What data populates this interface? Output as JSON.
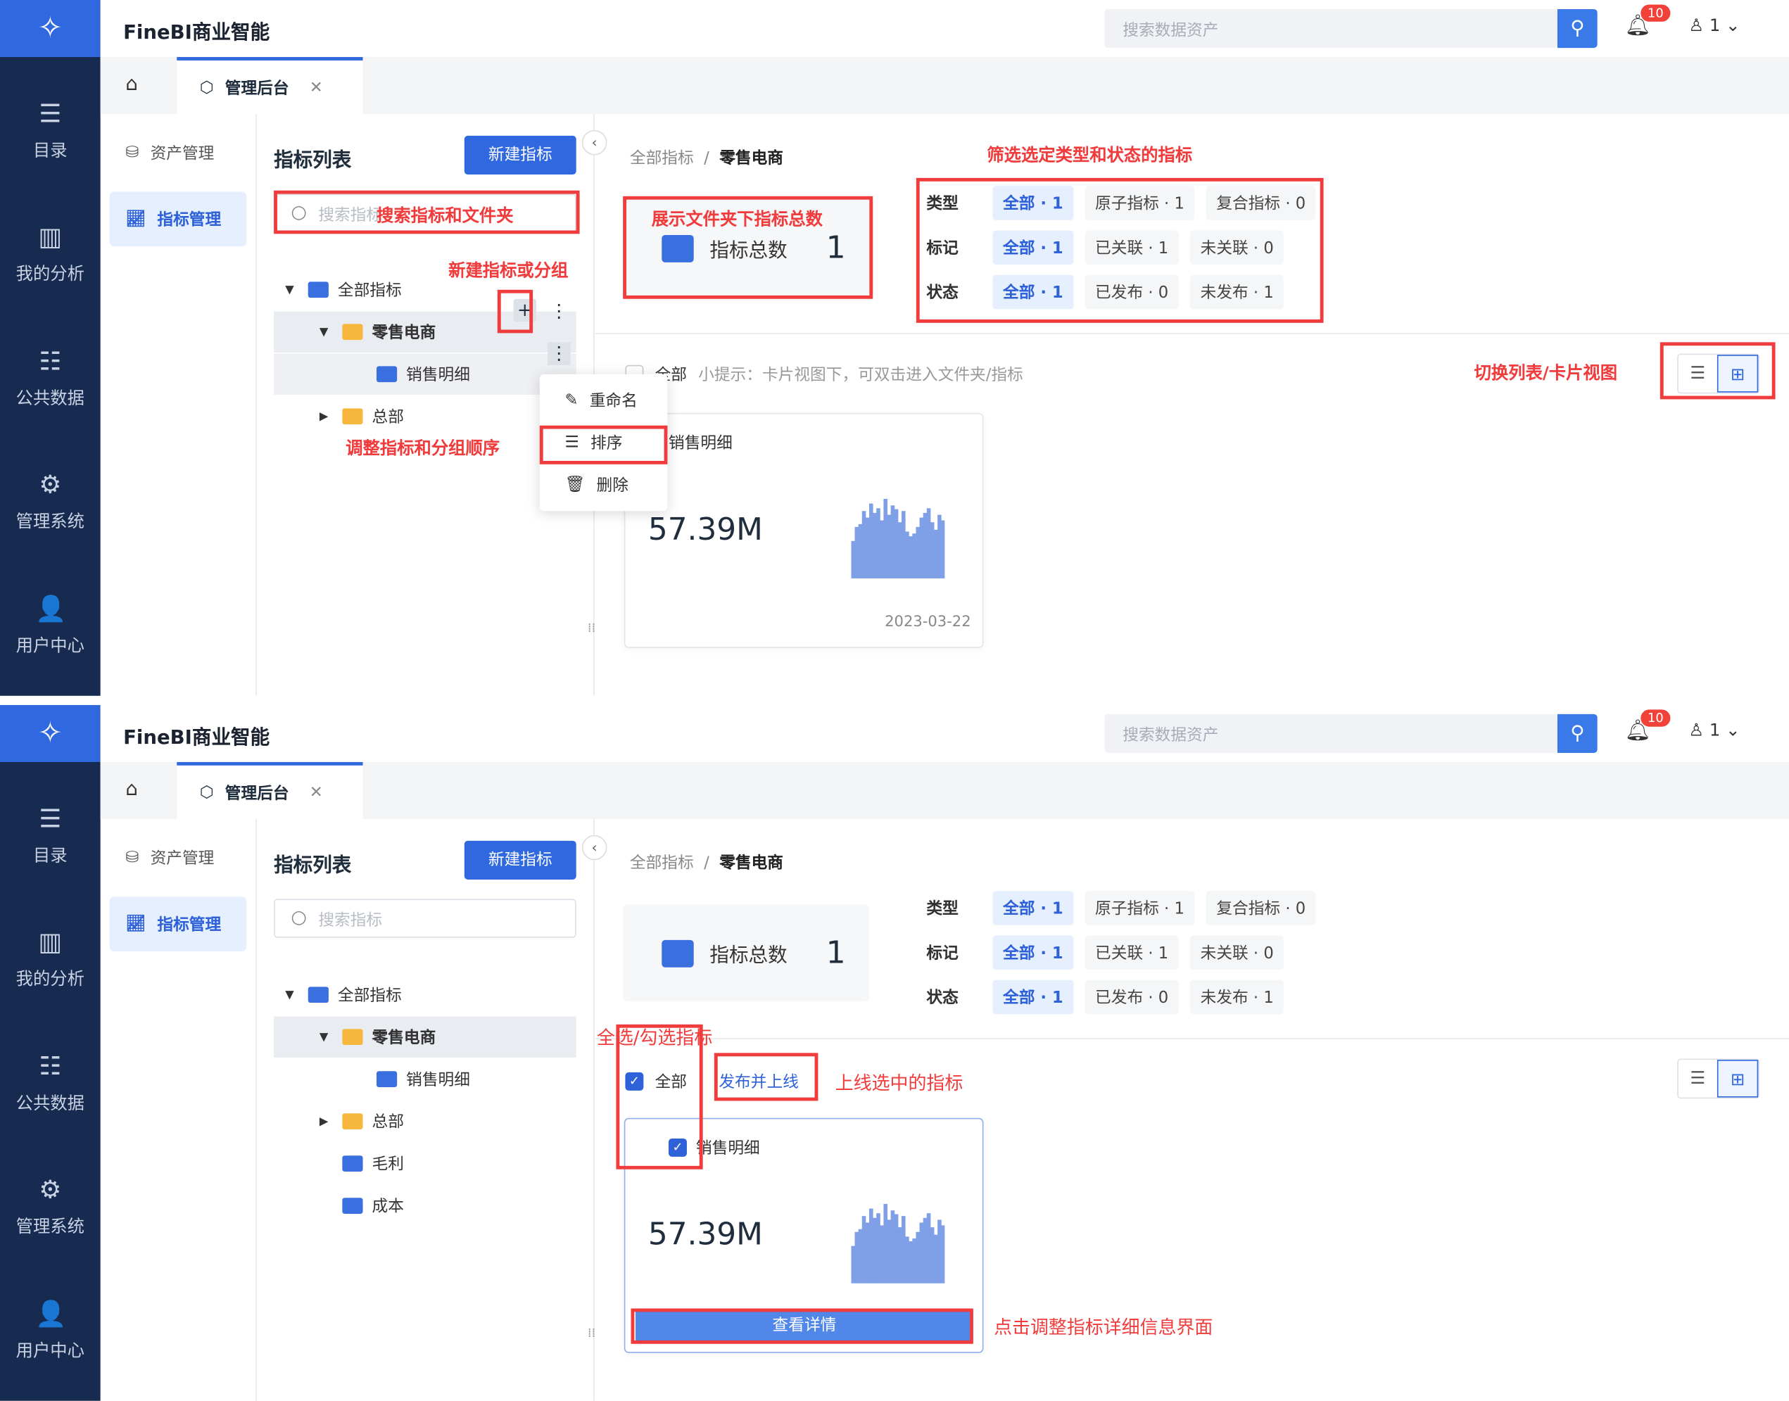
{
  "panels": [
    {
      "logo_icon": "finebi-logo",
      "app_title": "FineBI商业智能",
      "search_placeholder": "搜索数据资产",
      "notification_count": "10",
      "user": "1",
      "nav": [
        "目录",
        "我的分析",
        "公共数据",
        "管理系统",
        "用户中心"
      ],
      "tab": "管理后台",
      "subnav": [
        "资产管理",
        "指标管理"
      ],
      "list_title": "指标列表",
      "new_button": "新建指标",
      "list_search_placeholder": "搜索指标",
      "tree": [
        {
          "label": "全部指标",
          "type": "metric",
          "caret": "▼",
          "indent": 0
        },
        {
          "label": "零售电商",
          "type": "folder",
          "caret": "▼",
          "indent": 1,
          "selected": true,
          "bold": true
        },
        {
          "label": "销售明细",
          "type": "metric",
          "caret": "",
          "indent": 2,
          "hover": true
        },
        {
          "label": "总部",
          "type": "folder",
          "caret": "▶",
          "indent": 1
        }
      ],
      "breadcrumb": {
        "root": "全部指标",
        "current": "零售电商"
      },
      "stat": {
        "label": "指标总数",
        "value": "1"
      },
      "filters": [
        {
          "label": "类型",
          "chips": [
            "全部 · 1",
            "原子指标 · 1",
            "复合指标 · 0"
          ]
        },
        {
          "label": "标记",
          "chips": [
            "全部 · 1",
            "已关联 · 1",
            "未关联 · 0"
          ]
        },
        {
          "label": "状态",
          "chips": [
            "全部 · 1",
            "已发布 · 0",
            "未发布 · 1"
          ]
        }
      ],
      "select_all": {
        "label": "全部",
        "checked": false
      },
      "tip": "小提示：卡片视图下，可双击进入文件夹/指标",
      "publish": "",
      "view_mode": "card",
      "card": {
        "title": "销售明细",
        "value": "57.39M",
        "date": "2023-03-22",
        "checked": null,
        "button": ""
      },
      "context_menu": [
        "重命名",
        "排序",
        "删除"
      ],
      "annotations": [
        "搜索指标和文件夹",
        "展示文件夹下指标总数",
        "筛选选定类型和状态的指标",
        "新建指标或分组",
        "调整指标和分组顺序",
        "切换列表/卡片视图"
      ]
    },
    {
      "logo_icon": "finebi-logo",
      "app_title": "FineBI商业智能",
      "search_placeholder": "搜索数据资产",
      "notification_count": "10",
      "user": "1",
      "nav": [
        "目录",
        "我的分析",
        "公共数据",
        "管理系统",
        "用户中心"
      ],
      "tab": "管理后台",
      "subnav": [
        "资产管理",
        "指标管理"
      ],
      "list_title": "指标列表",
      "new_button": "新建指标",
      "list_search_placeholder": "搜索指标",
      "tree": [
        {
          "label": "全部指标",
          "type": "metric",
          "caret": "▼",
          "indent": 0
        },
        {
          "label": "零售电商",
          "type": "folder",
          "caret": "▼",
          "indent": 1,
          "selected": true,
          "bold": true
        },
        {
          "label": "销售明细",
          "type": "metric",
          "caret": "",
          "indent": 2
        },
        {
          "label": "总部",
          "type": "folder",
          "caret": "▶",
          "indent": 1
        },
        {
          "label": "毛利",
          "type": "metric",
          "caret": "",
          "indent": 1
        },
        {
          "label": "成本",
          "type": "metric",
          "caret": "",
          "indent": 1
        }
      ],
      "breadcrumb": {
        "root": "全部指标",
        "current": "零售电商"
      },
      "stat": {
        "label": "指标总数",
        "value": "1"
      },
      "filters": [
        {
          "label": "类型",
          "chips": [
            "全部 · 1",
            "原子指标 · 1",
            "复合指标 · 0"
          ]
        },
        {
          "label": "标记",
          "chips": [
            "全部 · 1",
            "已关联 · 1",
            "未关联 · 0"
          ]
        },
        {
          "label": "状态",
          "chips": [
            "全部 · 1",
            "已发布 · 0",
            "未发布 · 1"
          ]
        }
      ],
      "select_all": {
        "label": "全部",
        "checked": true
      },
      "tip": "",
      "publish": "发布并上线",
      "view_mode": "card",
      "card": {
        "title": "销售明细",
        "value": "57.39M",
        "date": "",
        "checked": true,
        "button": "查看详情"
      },
      "context_menu": [],
      "annotations": [
        "全选/勾选指标",
        "上线选中的指标",
        "点击调整指标详细信息界面"
      ]
    }
  ],
  "sparkline": [
    40,
    55,
    58,
    72,
    65,
    80,
    70,
    75,
    62,
    85,
    68,
    78,
    74,
    60,
    72,
    50,
    45,
    48,
    55,
    65,
    70,
    75,
    60,
    52,
    68,
    62
  ],
  "colors": {
    "brand": "#3068e0",
    "nav_bg": "#172a50",
    "annotation": "#f03c3c",
    "sparkline": "#7fa0e6"
  }
}
